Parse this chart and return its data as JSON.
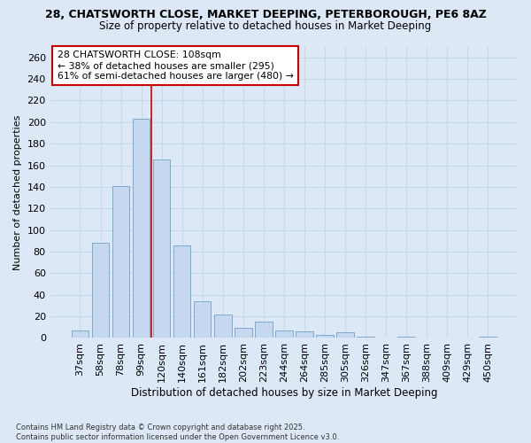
{
  "title_line1": "28, CHATSWORTH CLOSE, MARKET DEEPING, PETERBOROUGH, PE6 8AZ",
  "title_line2": "Size of property relative to detached houses in Market Deeping",
  "xlabel": "Distribution of detached houses by size in Market Deeping",
  "ylabel": "Number of detached properties",
  "categories": [
    "37sqm",
    "58sqm",
    "78sqm",
    "99sqm",
    "120sqm",
    "140sqm",
    "161sqm",
    "182sqm",
    "202sqm",
    "223sqm",
    "244sqm",
    "264sqm",
    "285sqm",
    "305sqm",
    "326sqm",
    "347sqm",
    "367sqm",
    "388sqm",
    "409sqm",
    "429sqm",
    "450sqm"
  ],
  "values": [
    7,
    88,
    141,
    203,
    165,
    86,
    34,
    22,
    9,
    15,
    7,
    6,
    3,
    5,
    1,
    0,
    1,
    0,
    0,
    0,
    1
  ],
  "bar_color": "#c5d8f0",
  "bar_edge_color": "#7aabcf",
  "vline_color": "#cc0000",
  "vline_x": 3.5,
  "annotation_line1": "28 CHATSWORTH CLOSE: 108sqm",
  "annotation_line2": "← 38% of detached houses are smaller (295)",
  "annotation_line3": "61% of semi-detached houses are larger (480) →",
  "annotation_box_facecolor": "#ffffff",
  "annotation_box_edgecolor": "#cc0000",
  "ylim": [
    0,
    270
  ],
  "yticks": [
    0,
    20,
    40,
    60,
    80,
    100,
    120,
    140,
    160,
    180,
    200,
    220,
    240,
    260
  ],
  "background_color": "#dce8f5",
  "grid_color": "#c8d8e8",
  "footer_line1": "Contains HM Land Registry data © Crown copyright and database right 2025.",
  "footer_line2": "Contains public sector information licensed under the Open Government Licence v3.0."
}
